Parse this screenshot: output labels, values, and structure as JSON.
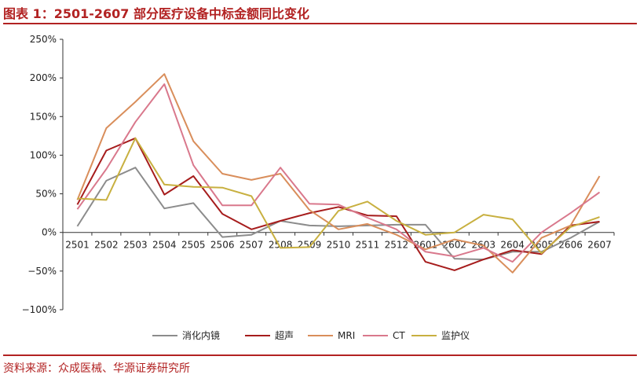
{
  "title": "图表 1：2501-2607 部分医疗设备中标金额同比变化",
  "source": "资料来源：众成医械、华源证券研究所",
  "chart_data": {
    "type": "line",
    "categories": [
      "2501",
      "2502",
      "2503",
      "2504",
      "2505",
      "2506",
      "2507",
      "2508",
      "2509",
      "2510",
      "2511",
      "2512",
      "2601",
      "2602",
      "2603",
      "2604",
      "2605",
      "2606",
      "2607"
    ],
    "ylim": [
      -100,
      250
    ],
    "yticks": [
      -100,
      -50,
      0,
      50,
      100,
      150,
      200,
      250
    ],
    "ytick_labels": [
      "−100%",
      "−50%",
      "0%",
      "50%",
      "100%",
      "150%",
      "200%",
      "250%"
    ],
    "grid": false,
    "legend": "bottom",
    "series": [
      {
        "name": "消化内镜",
        "color": "#8c8c8c",
        "values": [
          8,
          67,
          84,
          31,
          38,
          -6,
          -3,
          15,
          9,
          8,
          9,
          10,
          10,
          -34,
          -35,
          -25,
          -25,
          -7,
          14
        ]
      },
      {
        "name": "超声",
        "color": "#a61c1c",
        "values": [
          36,
          106,
          122,
          49,
          73,
          24,
          4,
          15,
          25,
          33,
          22,
          21,
          -38,
          -49,
          -35,
          -23,
          -28,
          9,
          14
        ]
      },
      {
        "name": "MRI",
        "color": "#d98e5b",
        "values": [
          42,
          135,
          169,
          205,
          118,
          76,
          68,
          76,
          29,
          4,
          11,
          -3,
          -22,
          -9,
          -17,
          -52,
          -7,
          9,
          73
        ]
      },
      {
        "name": "CT",
        "color": "#d9788c",
        "values": [
          30,
          82,
          143,
          192,
          87,
          35,
          35,
          84,
          37,
          36,
          19,
          4,
          -25,
          -31,
          -20,
          -38,
          0,
          25,
          52
        ]
      },
      {
        "name": "监护仪",
        "color": "#c8b040",
        "values": [
          44,
          42,
          122,
          62,
          59,
          58,
          47,
          -20,
          -19,
          28,
          40,
          15,
          -3,
          0,
          23,
          17,
          -27,
          7,
          20
        ]
      }
    ]
  }
}
